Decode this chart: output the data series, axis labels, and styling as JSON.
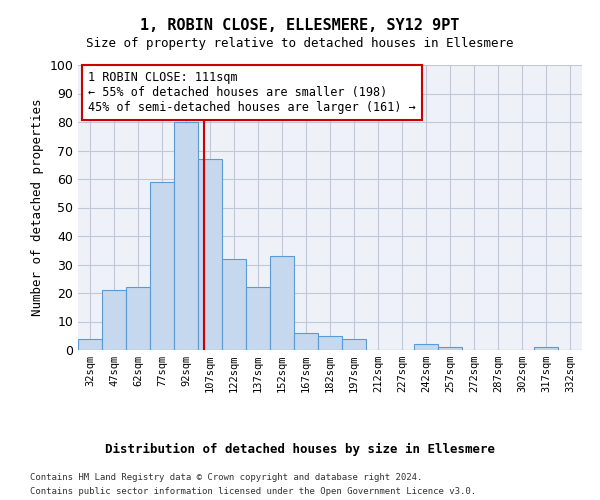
{
  "title": "1, ROBIN CLOSE, ELLESMERE, SY12 9PT",
  "subtitle": "Size of property relative to detached houses in Ellesmere",
  "xlabel": "Distribution of detached houses by size in Ellesmere",
  "ylabel": "Number of detached properties",
  "categories": [
    "32sqm",
    "47sqm",
    "62sqm",
    "77sqm",
    "92sqm",
    "107sqm",
    "122sqm",
    "137sqm",
    "152sqm",
    "167sqm",
    "182sqm",
    "197sqm",
    "212sqm",
    "227sqm",
    "242sqm",
    "257sqm",
    "272sqm",
    "287sqm",
    "302sqm",
    "317sqm",
    "332sqm"
  ],
  "values": [
    4,
    21,
    22,
    59,
    80,
    67,
    32,
    22,
    33,
    6,
    5,
    4,
    0,
    0,
    2,
    1,
    0,
    0,
    0,
    1,
    0
  ],
  "bar_color": "#c5d8ed",
  "bar_edge_color": "#5b9bd5",
  "ylim": [
    0,
    100
  ],
  "annotation_line1": "1 ROBIN CLOSE: 111sqm",
  "annotation_line2": "← 55% of detached houses are smaller (198)",
  "annotation_line3": "45% of semi-detached houses are larger (161) →",
  "annotation_box_color": "#ffffff",
  "annotation_box_edge_color": "#cc0000",
  "red_line_color": "#cc0000",
  "grid_color": "#c0c8d8",
  "background_color": "#eef2f8",
  "footnote_line1": "Contains HM Land Registry data © Crown copyright and database right 2024.",
  "footnote_line2": "Contains public sector information licensed under the Open Government Licence v3.0."
}
